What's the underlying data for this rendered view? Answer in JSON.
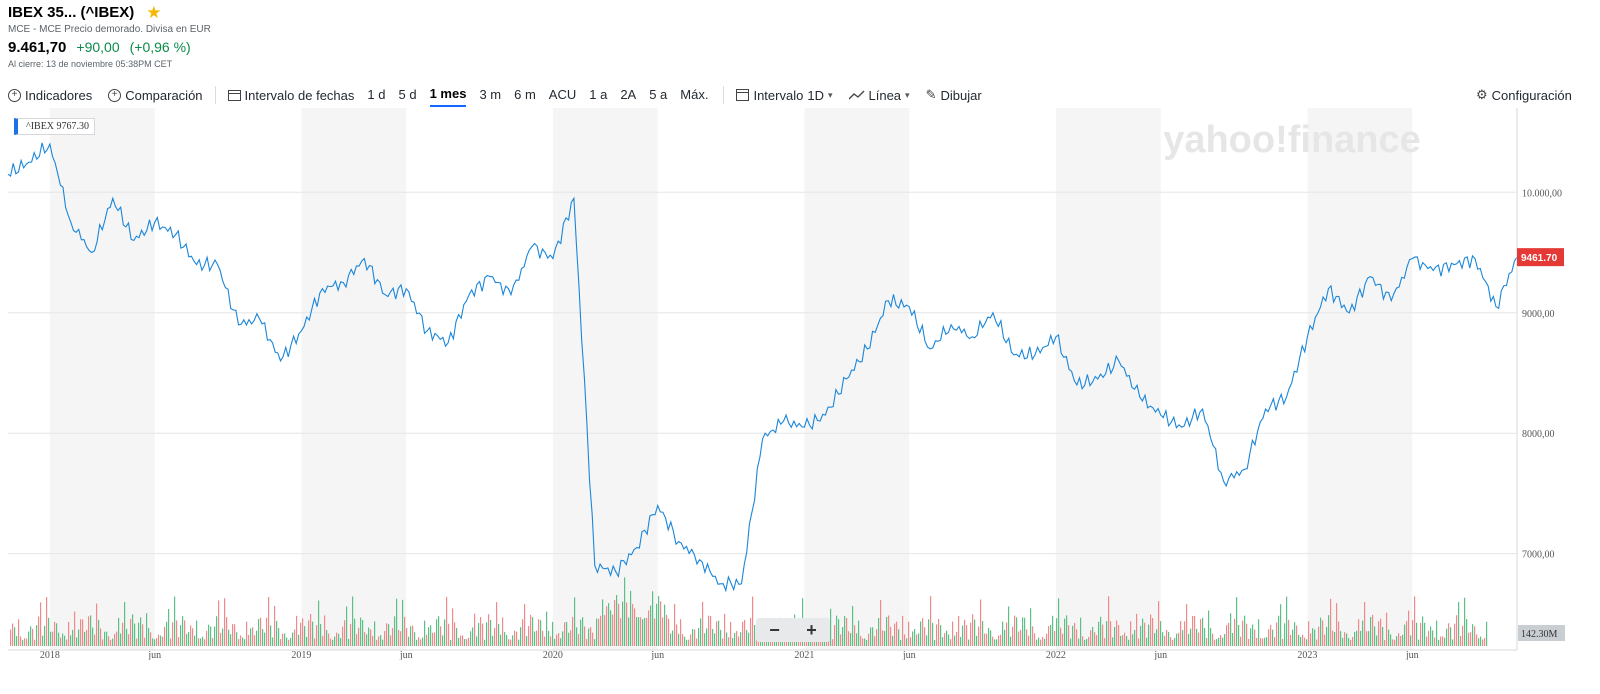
{
  "header": {
    "title": "IBEX 35... (^IBEX)",
    "subtitle": "MCE - MCE Precio demorado. Divisa en EUR",
    "price": "9.461,70",
    "change": "+90,00",
    "change_pct": "(+0,96 %)",
    "close_info": "Al cierre: 13 de noviembre 05:38PM CET"
  },
  "toolbar": {
    "indicators": "Indicadores",
    "comparison": "Comparación",
    "date_range": "Intervalo de fechas",
    "ranges": [
      "1 d",
      "5 d",
      "1 mes",
      "3 m",
      "6 m",
      "ACU",
      "1 a",
      "2A",
      "5 a",
      "Máx."
    ],
    "active_range": "1 mes",
    "interval": "Intervalo",
    "interval_value": "1D",
    "chart_type": "Línea",
    "draw": "Dibujar",
    "settings": "Configuración"
  },
  "chart_data": {
    "type": "line",
    "watermark": "yahoo!finance",
    "legend": {
      "symbol": "^IBEX",
      "value": "9767.30"
    },
    "last_price_label": "9461.70",
    "volume_label": "142.30M",
    "y_ticks": [
      "10.000,00",
      "9000,00",
      "8000,00",
      "7000,00"
    ],
    "ylim": [
      6200,
      10700
    ],
    "x_ticks": [
      "2018",
      "jun",
      "2019",
      "jun",
      "2020",
      "jun",
      "2021",
      "jun",
      "2022",
      "jun",
      "2023",
      "jun"
    ],
    "x_tick_dates": [
      "2018-01",
      "2018-06",
      "2019-01",
      "2019-06",
      "2020-01",
      "2020-06",
      "2021-01",
      "2021-06",
      "2022-01",
      "2022-06",
      "2023-01",
      "2023-06"
    ],
    "xlim": [
      "2017-11",
      "2023-11"
    ],
    "grid": "horizontal",
    "series": [
      {
        "x": [
          "2017-11",
          "2017-12",
          "2018-01",
          "2018-02",
          "2018-03",
          "2018-04",
          "2018-05",
          "2018-06",
          "2018-07",
          "2018-08",
          "2018-09",
          "2018-10",
          "2018-11",
          "2018-12",
          "2019-01",
          "2019-02",
          "2019-03",
          "2019-04",
          "2019-05",
          "2019-06",
          "2019-07",
          "2019-08",
          "2019-09",
          "2019-10",
          "2019-11",
          "2019-12",
          "2020-01",
          "2020-02",
          "2020-03",
          "2020-04",
          "2020-05",
          "2020-06",
          "2020-07",
          "2020-08",
          "2020-09",
          "2020-10",
          "2020-11",
          "2020-12",
          "2021-01",
          "2021-02",
          "2021-03",
          "2021-04",
          "2021-05",
          "2021-06",
          "2021-07",
          "2021-08",
          "2021-09",
          "2021-10",
          "2021-11",
          "2021-12",
          "2022-01",
          "2022-02",
          "2022-03",
          "2022-04",
          "2022-05",
          "2022-06",
          "2022-07",
          "2022-08",
          "2022-09",
          "2022-10",
          "2022-11",
          "2022-12",
          "2023-01",
          "2023-02",
          "2023-03",
          "2023-04",
          "2023-05",
          "2023-06",
          "2023-07",
          "2023-08",
          "2023-09",
          "2023-10",
          "2023-11"
        ],
        "values": [
          10150,
          10250,
          10400,
          9750,
          9500,
          9950,
          9600,
          9750,
          9650,
          9400,
          9400,
          8900,
          8950,
          8600,
          8850,
          9200,
          9250,
          9450,
          9150,
          9200,
          8850,
          8750,
          9150,
          9300,
          9150,
          9550,
          9450,
          9950,
          6900,
          6850,
          7050,
          7400,
          7100,
          6950,
          6750,
          6750,
          7950,
          8100,
          8050,
          8150,
          8450,
          8700,
          9100,
          9050,
          8700,
          8900,
          8800,
          9000,
          8650,
          8650,
          8800,
          8400,
          8450,
          8600,
          8300,
          8150,
          8050,
          8200,
          7600,
          7700,
          8200,
          8300,
          8800,
          9200,
          9000,
          9300,
          9100,
          9450,
          9350,
          9400,
          9450,
          9050,
          9461.7
        ]
      }
    ]
  }
}
